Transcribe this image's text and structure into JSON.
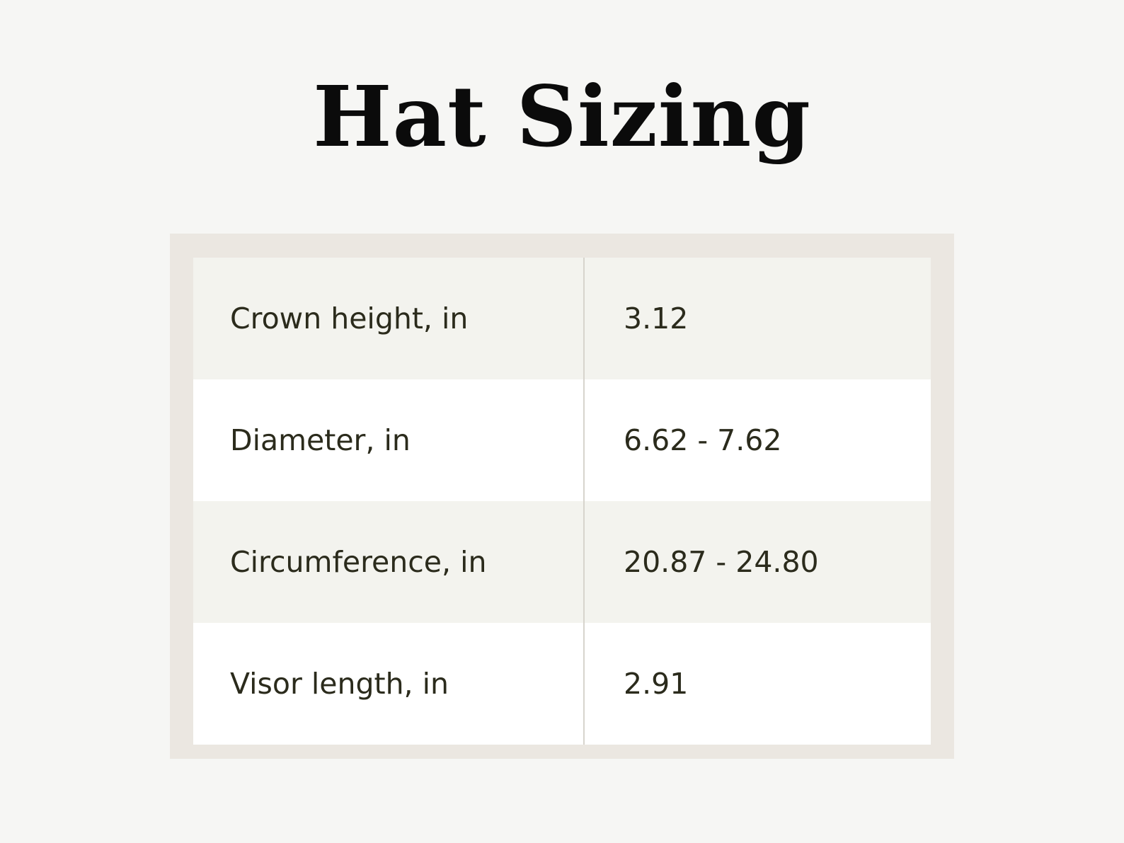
{
  "title": "Hat Sizing",
  "table": {
    "rows": [
      {
        "label": "Crown height, in",
        "value": "3.12"
      },
      {
        "label": "Diameter, in",
        "value": "6.62 - 7.62"
      },
      {
        "label": "Circumference, in",
        "value": "20.87 - 24.80"
      },
      {
        "label": "Visor length, in",
        "value": "2.91"
      }
    ]
  }
}
